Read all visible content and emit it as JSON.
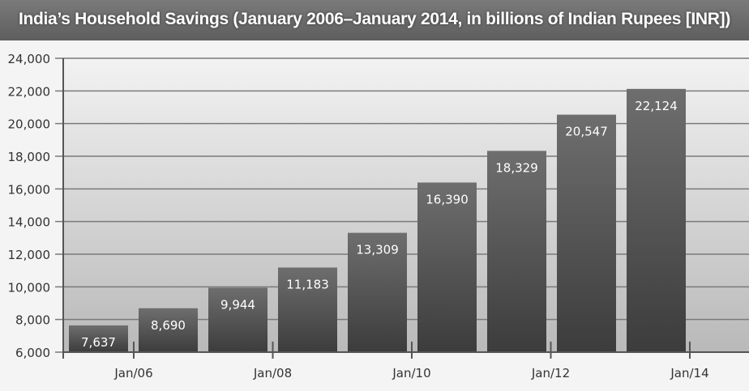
{
  "chart_data": {
    "type": "bar",
    "title": "India’s Household Savings (January 2006–January 2014, in billions of Indian Rupees [INR])",
    "values": [
      7637,
      8690,
      9944,
      11183,
      13309,
      16390,
      18329,
      20547,
      22124
    ],
    "data_labels": [
      "7,637",
      "8,690",
      "9,944",
      "11,183",
      "13,309",
      "16,390",
      "18,329",
      "20,547",
      "22,124"
    ],
    "x_ticks": [
      "Jan/06",
      "Jan/08",
      "Jan/10",
      "Jan/12",
      "Jan/14"
    ],
    "y_ticks": [
      "6,000",
      "8,000",
      "10,000",
      "12,000",
      "14,000",
      "16,000",
      "18,000",
      "20,000",
      "22,000",
      "24,000"
    ],
    "ylim": [
      6000,
      24000
    ],
    "grid": true,
    "colors": {
      "bar_top": "#6e6e6e",
      "bar_bottom": "#3c3c3c",
      "title_bar": "#666666",
      "grid": "#7a7a7a"
    }
  }
}
